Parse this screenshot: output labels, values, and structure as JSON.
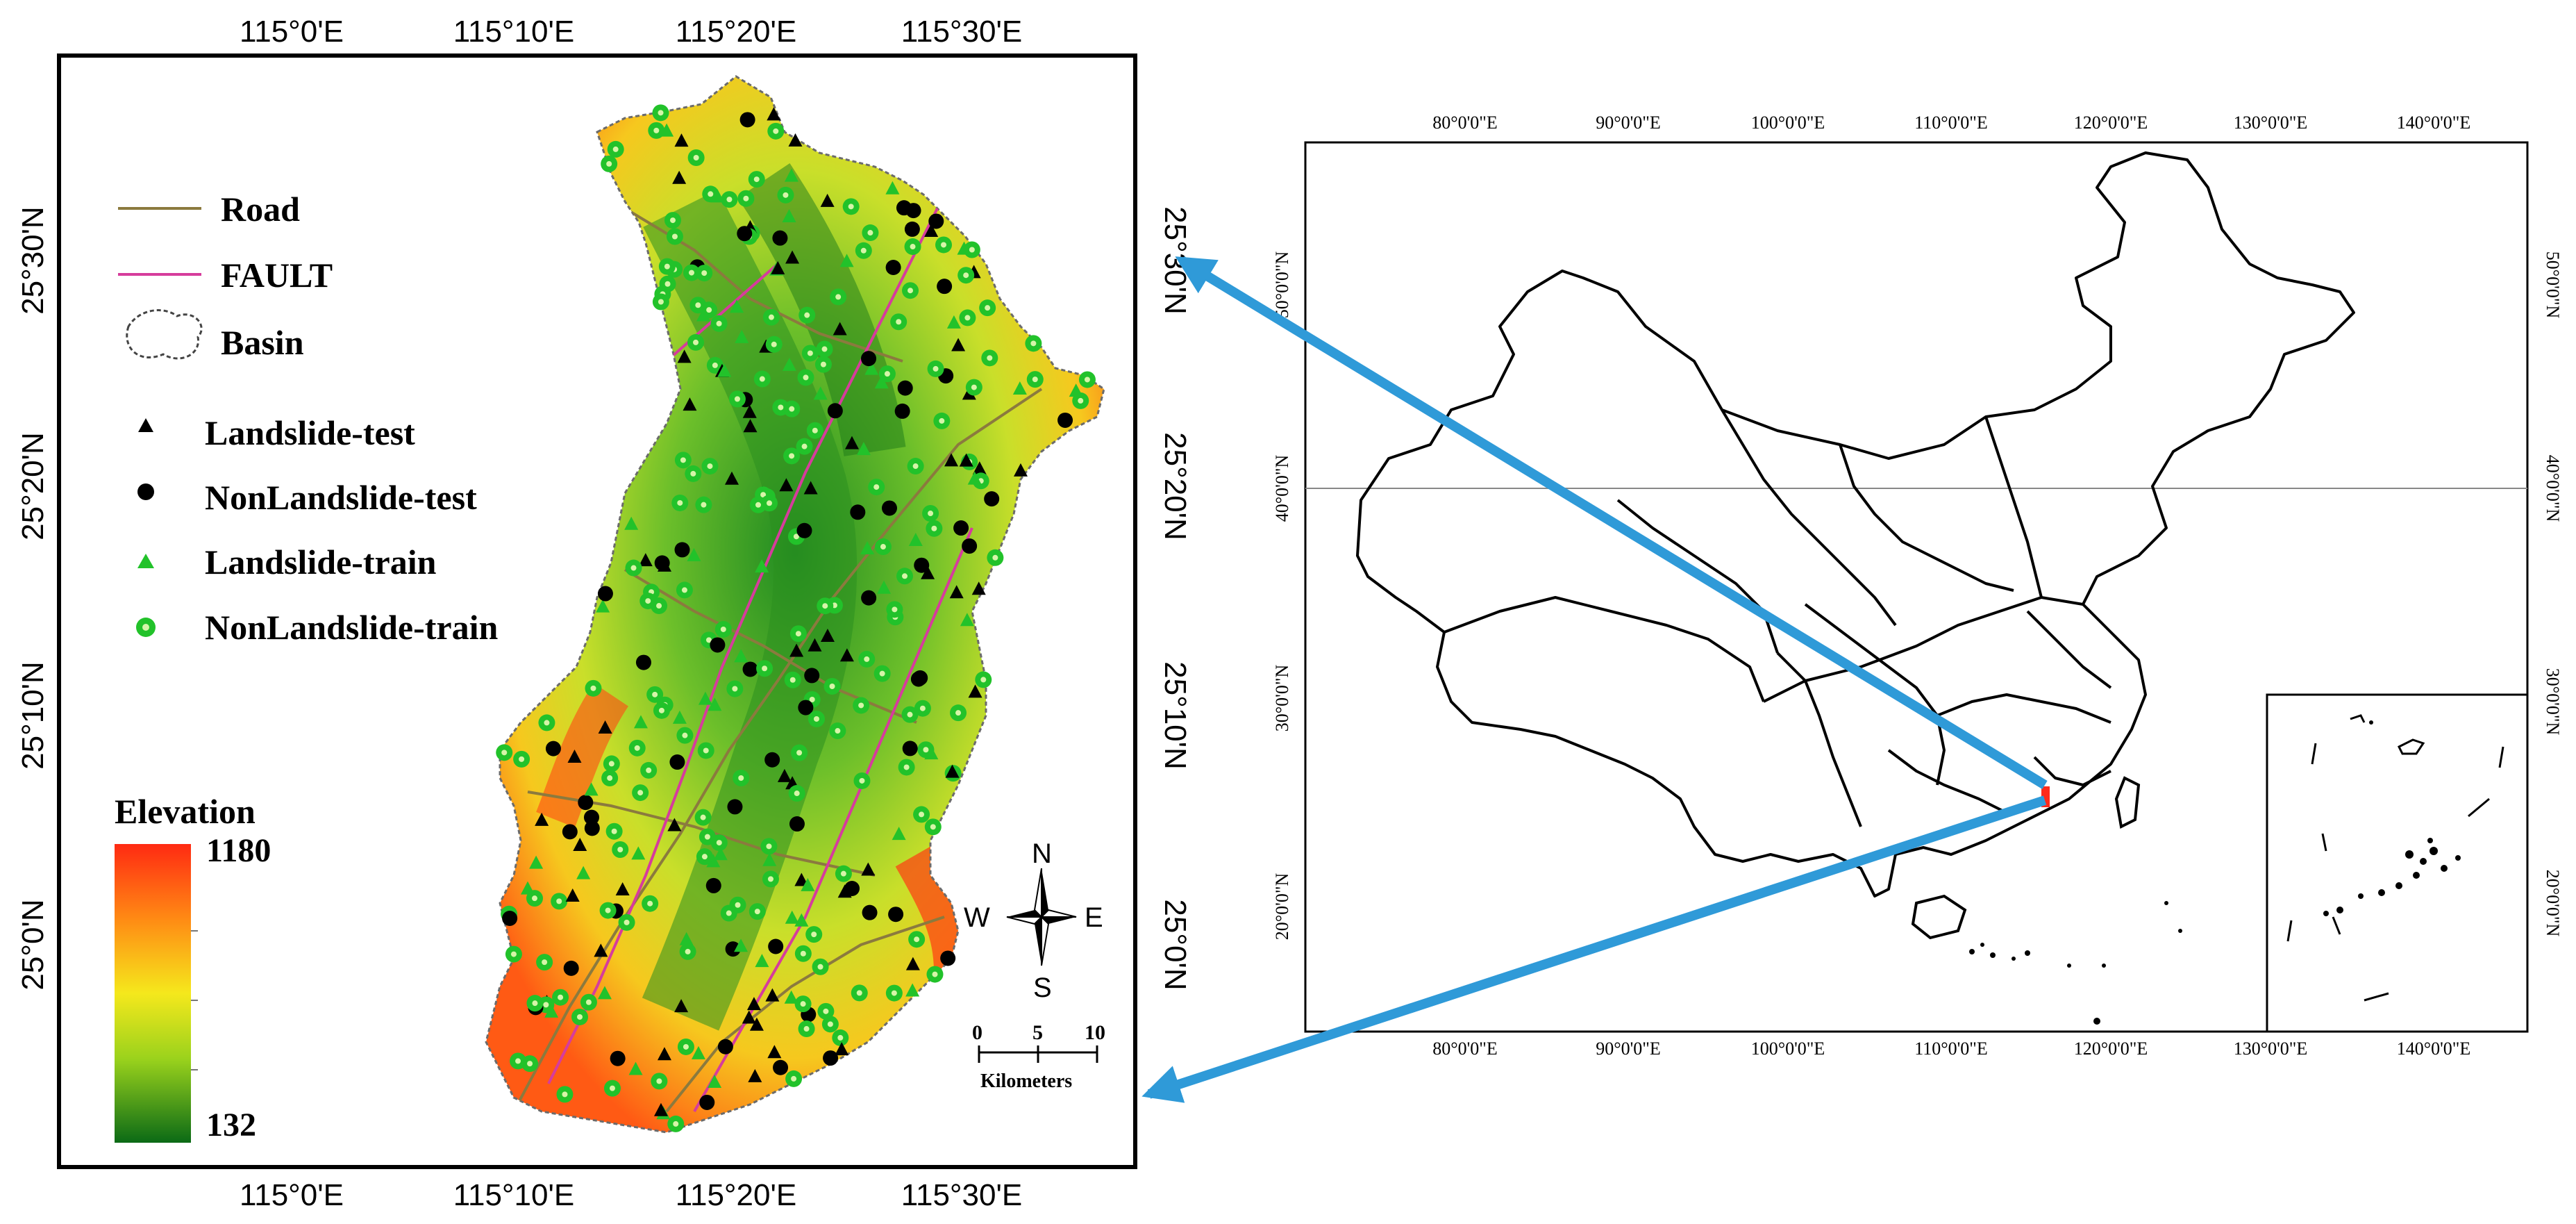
{
  "left_map": {
    "lon_labels": [
      "115°0'E",
      "115°10'E",
      "115°20'E",
      "115°30'E"
    ],
    "lat_labels": [
      "25°30'N",
      "25°20'N",
      "25°10'N",
      "25°0'N"
    ],
    "legend": [
      {
        "label": "Road",
        "symbol": "road-line"
      },
      {
        "label": "FAULT",
        "symbol": "fault-line"
      },
      {
        "label": "Basin",
        "symbol": "basin-outline"
      },
      {
        "label": "Landslide-test",
        "symbol": "black-triangle"
      },
      {
        "label": "NonLandslide-test",
        "symbol": "black-circle"
      },
      {
        "label": "Landslide-train",
        "symbol": "green-triangle"
      },
      {
        "label": "NonLandslide-train",
        "symbol": "green-circle"
      }
    ],
    "elevation": {
      "title": "Elevation",
      "max": "1180",
      "min": "132"
    },
    "north_arrow": {
      "n": "N",
      "s": "S",
      "e": "E",
      "w": "W"
    },
    "scale_bar": {
      "ticks": [
        "0",
        "5",
        "10"
      ],
      "unit": "Kilometers"
    },
    "colors": {
      "road": "#8b7a3e",
      "fault": "#d63c9c",
      "elev_high": "#ff3b1a",
      "elev_mid": "#f2e41c",
      "elev_low": "#0f6e1a",
      "train_green": "#22c22a"
    }
  },
  "right_map": {
    "lon_labels": [
      "80°0'0\"E",
      "90°0'0\"E",
      "100°0'0\"E",
      "110°0'0\"E",
      "120°0'0\"E",
      "130°0'0\"E",
      "140°0'0\"E"
    ],
    "lat_labels": [
      "50°0'0\"N",
      "40°0'0\"N",
      "30°0'0\"N",
      "20°0'0\"N"
    ],
    "inset_lat_labels": [
      "30°0'0\"N",
      "20°0'0\"N"
    ],
    "inset_lon_labels": [
      "130°0'0\"E",
      "140°0'0\"E"
    ],
    "study_area_color": "#ff2a1a"
  },
  "arrow_color": "#2f9ad8"
}
